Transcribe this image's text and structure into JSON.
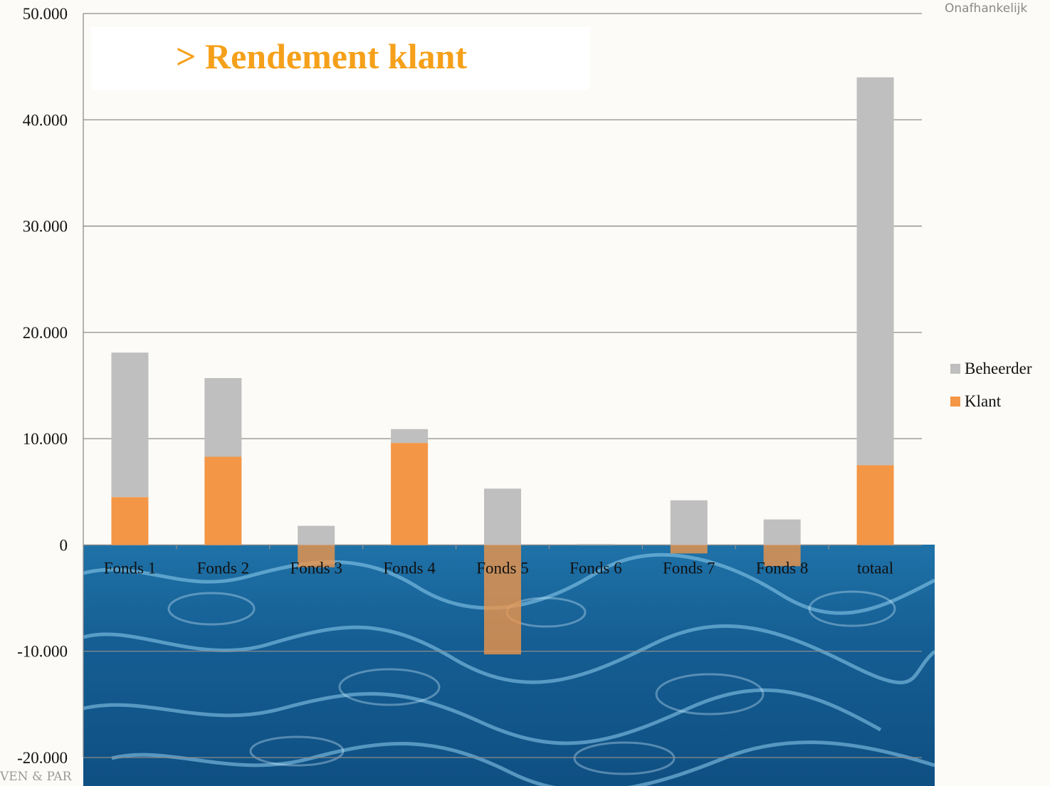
{
  "slide": {
    "title": "> Rendement klant",
    "tagline": "Onafhankelijk",
    "footer_logo": "VEN & PAR"
  },
  "colors": {
    "beheerder": "#bfbfbf",
    "klant": "#f39646",
    "title": "#f5a01a"
  },
  "chart_data": {
    "type": "bar",
    "stacked": true,
    "categories": [
      "Fonds 1",
      "Fonds 2",
      "Fonds 3",
      "Fonds 4",
      "Fonds 5",
      "Fonds 6",
      "Fonds 7",
      "Fonds 8",
      "totaal"
    ],
    "series": [
      {
        "name": "Klant",
        "color": "#f39646",
        "values": [
          4500,
          8300,
          -2100,
          9600,
          -10300,
          0,
          -800,
          -2000,
          7500
        ]
      },
      {
        "name": "Beheerder",
        "color": "#bfbfbf",
        "values": [
          13600,
          7400,
          1800,
          1300,
          5300,
          100,
          4200,
          2400,
          36500
        ]
      }
    ],
    "ylim": [
      -20000,
      50000
    ],
    "yticks": [
      50000,
      40000,
      30000,
      20000,
      10000,
      0,
      -10000,
      -20000
    ],
    "ytick_labels": [
      "50.000",
      "40.000",
      "30.000",
      "20.000",
      "10.000",
      "0",
      "-10.000",
      "-20.000"
    ],
    "grid": true,
    "legend_position": "right",
    "legend": [
      "Beheerder",
      "Klant"
    ]
  }
}
